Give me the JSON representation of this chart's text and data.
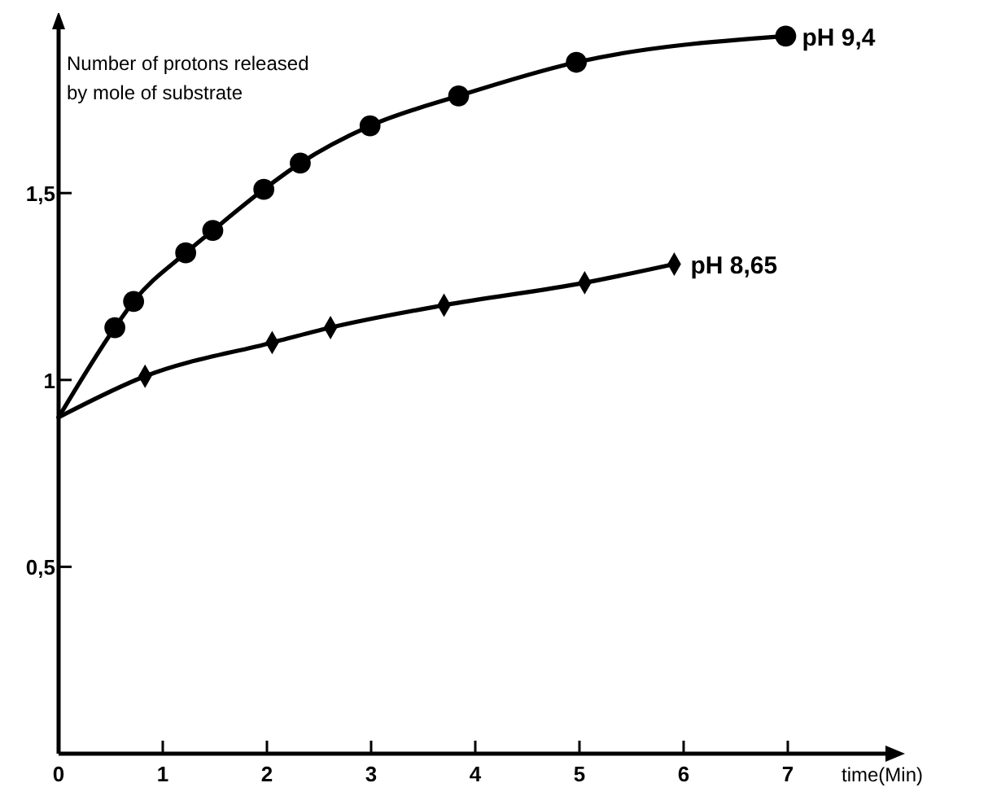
{
  "chart_data": {
    "type": "line",
    "xlabel": "time(Min)",
    "ylabel": "Number of protons released\nby mole of substrate",
    "xlim": [
      0,
      8
    ],
    "ylim": [
      0,
      1.96
    ],
    "xticks": [
      0,
      1,
      2,
      3,
      4,
      5,
      6,
      7
    ],
    "yticks": [
      {
        "value": 0.5,
        "label": "0,5"
      },
      1,
      {
        "value": 1.5,
        "label": "1,5"
      }
    ],
    "grid": false,
    "series": [
      {
        "name": "pH 9,4",
        "marker": "none",
        "color": "#000000",
        "x": [
          0,
          0.54,
          0.72,
          1.22,
          1.48,
          1.97,
          2.32,
          2.99,
          3.84,
          4.97,
          6.98
        ],
        "values": [
          0.9,
          1.14,
          1.21,
          1.34,
          1.4,
          1.51,
          1.58,
          1.68,
          1.76,
          1.85,
          1.92
        ]
      },
      {
        "type": "scatter",
        "marker": "circle",
        "color": "#000000",
        "x": [
          0.54,
          0.72,
          1.22,
          1.48,
          1.97,
          2.32,
          2.99,
          3.84,
          4.97,
          6.98
        ],
        "values": [
          1.14,
          1.21,
          1.34,
          1.4,
          1.51,
          1.58,
          1.68,
          1.76,
          1.85,
          1.92
        ]
      },
      {
        "name": "pH 8,65",
        "marker": "none",
        "color": "#000000",
        "x": [
          0,
          0.83,
          2.05,
          2.61,
          3.7,
          5.05,
          5.91
        ],
        "values": [
          0.9,
          1.01,
          1.1,
          1.14,
          1.2,
          1.26,
          1.31
        ]
      },
      {
        "type": "scatter",
        "marker": "diamond",
        "color": "#000000",
        "x": [
          0.83,
          2.05,
          2.61,
          3.7,
          5.05,
          5.91
        ],
        "values": [
          1.01,
          1.1,
          1.14,
          1.2,
          1.26,
          1.31
        ]
      }
    ]
  }
}
